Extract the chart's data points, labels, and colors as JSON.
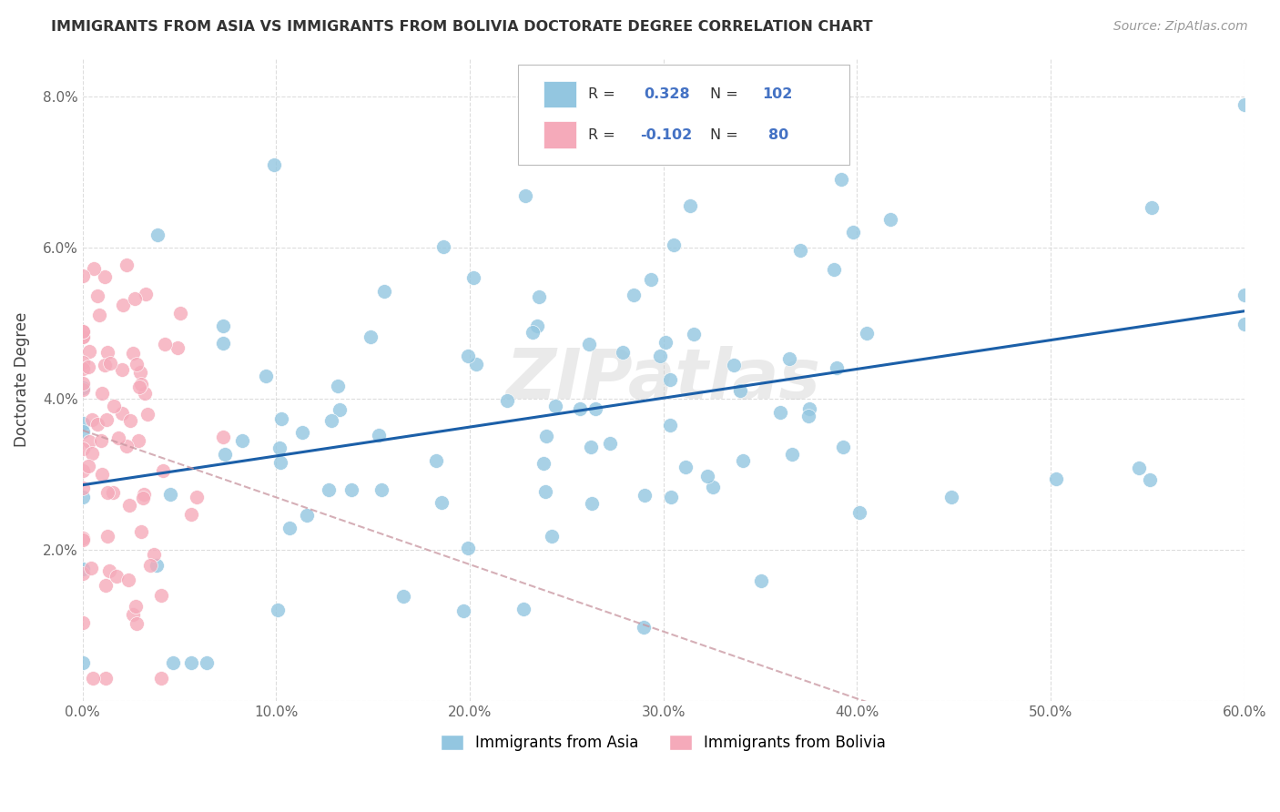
{
  "title": "IMMIGRANTS FROM ASIA VS IMMIGRANTS FROM BOLIVIA DOCTORATE DEGREE CORRELATION CHART",
  "source": "Source: ZipAtlas.com",
  "ylabel": "Doctorate Degree",
  "xlim": [
    0.0,
    0.6
  ],
  "ylim": [
    0.0,
    0.085
  ],
  "xticks": [
    0.0,
    0.1,
    0.2,
    0.3,
    0.4,
    0.5,
    0.6
  ],
  "yticks": [
    0.0,
    0.02,
    0.04,
    0.06,
    0.08
  ],
  "blue_color": "#93C6E0",
  "pink_color": "#F5AABA",
  "trendline_blue": "#1B5FA8",
  "trendline_pink": "#C8959F",
  "watermark": "ZIPatlas",
  "R_asia": 0.328,
  "N_asia": 102,
  "R_bolivia": -0.102,
  "N_bolivia": 80,
  "legend_label_asia": "Immigrants from Asia",
  "legend_label_bolivia": "Immigrants from Bolivia"
}
